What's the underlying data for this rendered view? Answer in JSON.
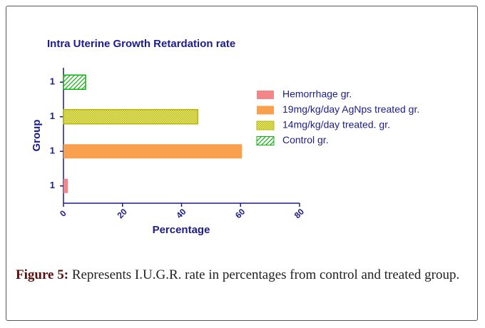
{
  "chart_data": {
    "type": "barh",
    "title": "Intra Uterine Growth Retardation rate",
    "x_label": "Percentage",
    "y_label": "Group",
    "categories": [
      "1",
      "1",
      "1",
      "1"
    ],
    "series": [
      {
        "name": "Hemorrhage gr.",
        "color": "#f4868a",
        "pattern": "solid",
        "values": [
          1.5,
          null,
          null,
          null
        ]
      },
      {
        "name": "19mg/kg/day AgNps treated gr.",
        "color": "#f9a04e",
        "pattern": "solid",
        "values": [
          null,
          60.5,
          null,
          null
        ]
      },
      {
        "name": "14mg/kg/day treated. gr.",
        "color": "#b8b800",
        "pattern": "crosshatch",
        "values": [
          null,
          null,
          45.5,
          null
        ]
      },
      {
        "name": "Control gr.",
        "color": "#10b010",
        "pattern": "hatch",
        "values": [
          null,
          null,
          null,
          7.5
        ]
      }
    ],
    "xlim": [
      0,
      80
    ],
    "xticks": [
      0,
      20,
      40,
      60,
      80
    ],
    "legend": "upper right"
  },
  "caption": {
    "label": "Figure 5:",
    "text": "Represents I.U.G.R. rate in percentages from control and treated group."
  }
}
